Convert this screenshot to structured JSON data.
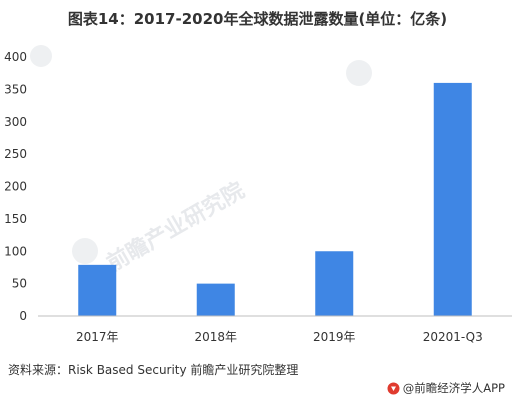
{
  "header": {
    "title": "图表14：2017-2020年全球数据泄露数量(单位：亿条)"
  },
  "chart_data": {
    "type": "bar",
    "title": "图表14：2017-2020年全球数据泄露数量(单位：亿条)",
    "xlabel": "",
    "ylabel": "",
    "categories": [
      "2017年",
      "2018年",
      "2019年",
      "20201-Q3"
    ],
    "values": [
      79,
      50,
      100,
      360
    ],
    "ylim": [
      0,
      400
    ],
    "yticks": [
      "0",
      "50",
      "100",
      "150",
      "200",
      "250",
      "300",
      "350",
      "400"
    ],
    "grid": false,
    "bar_color": "#3f86e4",
    "axis_color": "#bfbfbf"
  },
  "footer": {
    "source": "资料来源：Risk Based Security 前瞻产业研究院整理",
    "brand": "@前瞻经济学人APP",
    "brand_color": "#e03b2f"
  },
  "watermark": {
    "text": "前瞻产业研究院"
  }
}
